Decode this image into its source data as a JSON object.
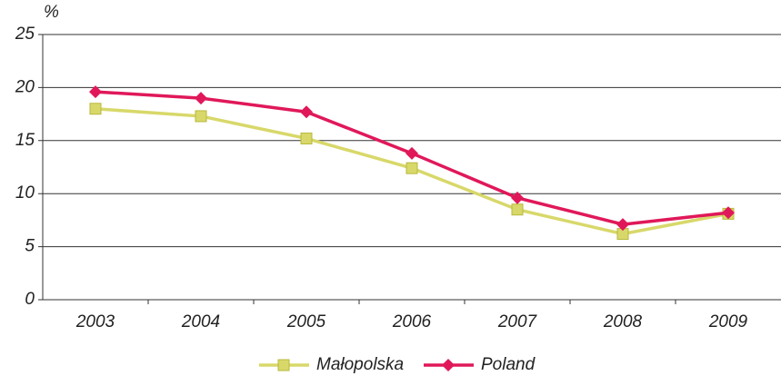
{
  "chart_data": {
    "type": "line",
    "y_unit": "%",
    "categories": [
      "2003",
      "2004",
      "2005",
      "2006",
      "2007",
      "2008",
      "2009"
    ],
    "series": [
      {
        "name": "Małopolska",
        "color": "#d8d86a",
        "marker": "square",
        "values": [
          18.0,
          17.3,
          15.2,
          12.4,
          8.5,
          6.2,
          8.1
        ]
      },
      {
        "name": "Poland",
        "color": "#e0185a",
        "marker": "diamond",
        "values": [
          19.6,
          19.0,
          17.7,
          13.8,
          9.6,
          7.1,
          8.2
        ]
      }
    ],
    "ylim": [
      0,
      25
    ],
    "yticks": [
      0,
      5,
      10,
      15,
      20,
      25
    ],
    "grid": true,
    "legend": "bottom"
  }
}
